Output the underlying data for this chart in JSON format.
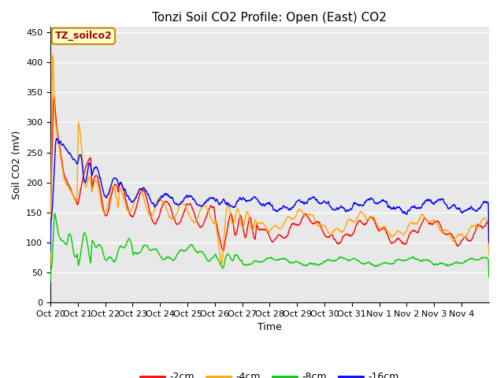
{
  "title": "Tonzi Soil CO2 Profile: Open (East) CO2",
  "xlabel": "Time",
  "ylabel": "Soil CO2 (mV)",
  "annotation": "TZ_soilco2",
  "ylim": [
    0,
    460
  ],
  "yticks": [
    0,
    50,
    100,
    150,
    200,
    250,
    300,
    350,
    400,
    450
  ],
  "xtick_labels": [
    "Oct 20",
    "Oct 21",
    "Oct 22",
    "Oct 23",
    "Oct 24",
    "Oct 25",
    "Oct 26",
    "Oct 27",
    "Oct 28",
    "Oct 29",
    "Oct 30",
    "Oct 31",
    "Nov 1",
    "Nov 2",
    "Nov 3",
    "Nov 4"
  ],
  "series_colors": [
    "#ff0000",
    "#ffa500",
    "#00cc00",
    "#0000ff"
  ],
  "series_labels": [
    "-2cm",
    "-4cm",
    "-8cm",
    "-16cm"
  ],
  "line_width": 1.0,
  "fig_bg_color": "#ffffff",
  "plot_bg_color": "#e8e8e8",
  "grid_color": "#ffffff",
  "title_fontsize": 11,
  "label_fontsize": 9,
  "tick_fontsize": 8
}
